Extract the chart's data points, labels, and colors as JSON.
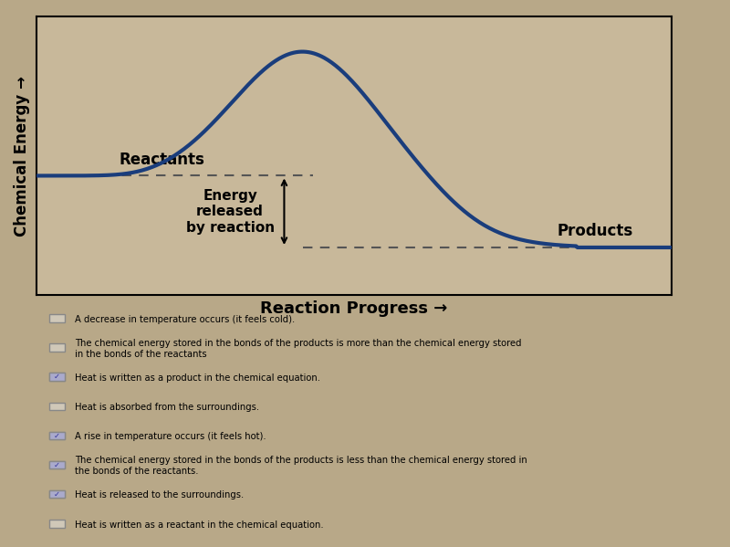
{
  "title": "",
  "ylabel": "Chemical Energy →",
  "xlabel": "Reaction Progress →",
  "reactants_label": "Reactants",
  "products_label": "Products",
  "energy_label": "Energy\nreleased\nby reaction",
  "reactants_level": 0.45,
  "products_level": 0.18,
  "peak_level": 0.92,
  "curve_color": "#1a3d7c",
  "dashed_color": "#555555",
  "bg_color": "#c8b89a",
  "plot_bg_color": "#c8b89a",
  "checkbox_items": [
    "A decrease in temperature occurs (it feels cold).",
    "The chemical energy stored in the bonds of the products is more than the chemical energy stored\nin the bonds of the reactants",
    "Heat is written as a product in the chemical equation.",
    "Heat is absorbed from the surroundings.",
    "A rise in temperature occurs (it feels hot).",
    "The chemical energy stored in the bonds of the products is less than the chemical energy stored in\nthe bonds of the reactants.",
    "Heat is released to the surroundings.",
    "Heat is written as a reactant in the chemical equation."
  ],
  "checked_items": [
    2,
    4,
    5,
    6
  ],
  "figure_bg": "#b8a888"
}
